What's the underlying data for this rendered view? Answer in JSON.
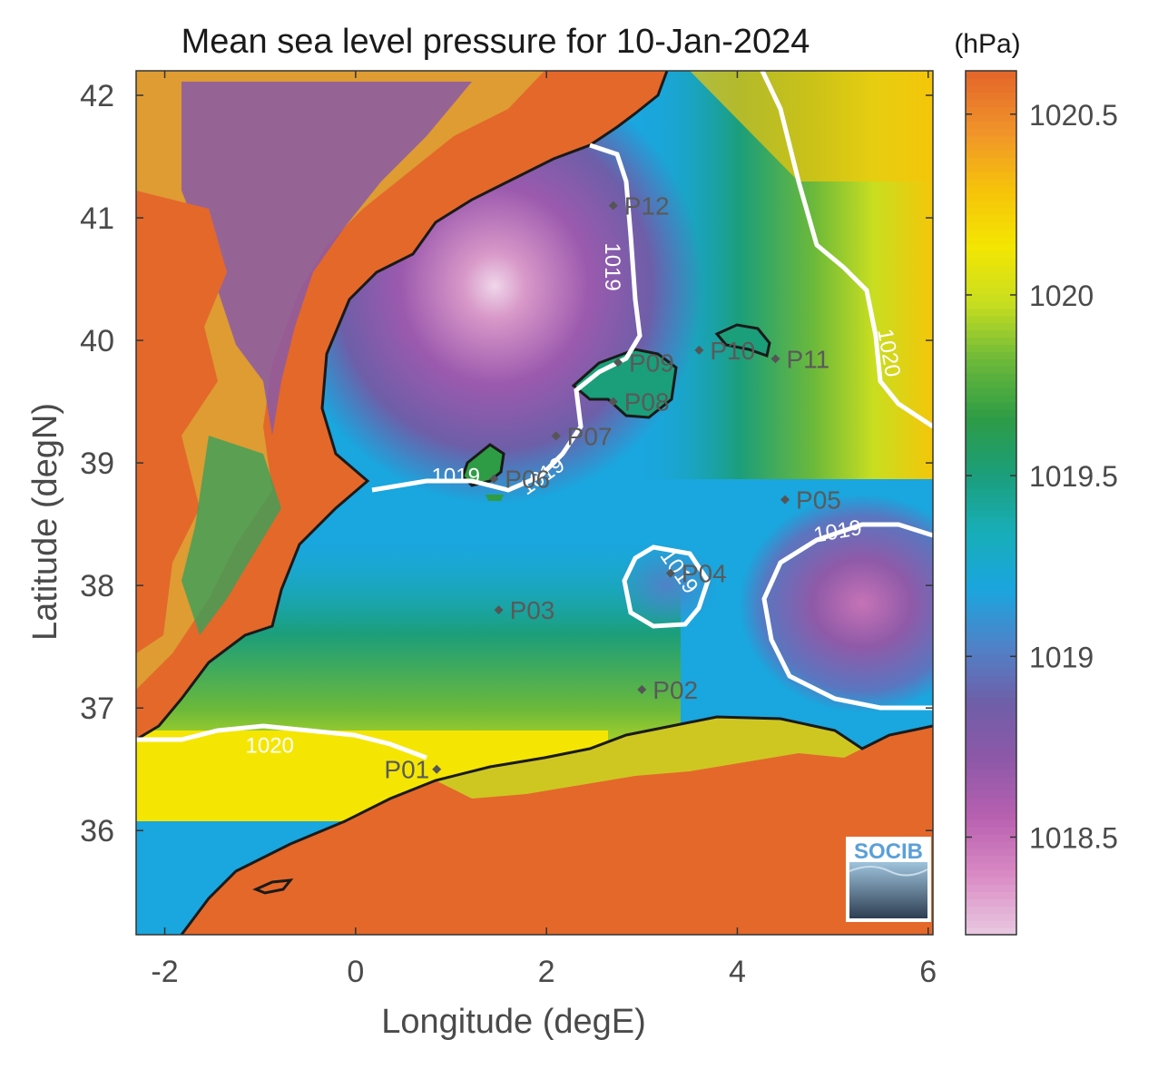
{
  "chart_data": {
    "type": "heatmap",
    "title": "Mean sea level pressure for 10-Jan-2024",
    "xlabel": "Longitude (degE)",
    "ylabel": "Latitude (degN)",
    "xlim": [
      -2.3,
      6.05
    ],
    "ylim": [
      35.15,
      42.2
    ],
    "xticks": [
      -2,
      0,
      2,
      4,
      6
    ],
    "xtick_labels": [
      "-2",
      "0",
      "2",
      "4",
      "6"
    ],
    "yticks": [
      36,
      37,
      38,
      39,
      40,
      41,
      42
    ],
    "ytick_labels": [
      "36",
      "37",
      "38",
      "39",
      "40",
      "41",
      "42"
    ],
    "colorbar": {
      "unit": "(hPa)",
      "range": [
        1018.23,
        1020.62
      ],
      "ticks": [
        1018.5,
        1019,
        1019.5,
        1020,
        1020.5
      ],
      "tick_labels": [
        "1018.5",
        "1019",
        "1019.5",
        "1020",
        "1020.5"
      ],
      "colors": [
        "#e8c6e0",
        "#d98ac4",
        "#b860b0",
        "#8e58a8",
        "#6f5ea8",
        "#4f82c8",
        "#1aa6de",
        "#18aeb8",
        "#1b9e7a",
        "#2e9c45",
        "#6cb93a",
        "#c8de20",
        "#f4e602",
        "#f6c20a",
        "#f0942a",
        "#e4682a"
      ]
    },
    "contours": [
      {
        "label": "1019",
        "level": 1019
      },
      {
        "label": "1020",
        "level": 1020
      }
    ],
    "stations": [
      {
        "name": "P01",
        "lon": 0.85,
        "lat": 36.5
      },
      {
        "name": "P02",
        "lon": 3.0,
        "lat": 37.15
      },
      {
        "name": "P03",
        "lon": 1.5,
        "lat": 37.8
      },
      {
        "name": "P04",
        "lon": 3.3,
        "lat": 38.1
      },
      {
        "name": "P05",
        "lon": 4.5,
        "lat": 38.7
      },
      {
        "name": "P06",
        "lon": 1.45,
        "lat": 38.87
      },
      {
        "name": "P07",
        "lon": 2.1,
        "lat": 39.22
      },
      {
        "name": "P08",
        "lon": 2.7,
        "lat": 39.5
      },
      {
        "name": "P09",
        "lon": 2.75,
        "lat": 39.82
      },
      {
        "name": "P10",
        "lon": 3.6,
        "lat": 39.92
      },
      {
        "name": "P11",
        "lon": 4.4,
        "lat": 39.85
      },
      {
        "name": "P12",
        "lon": 2.7,
        "lat": 41.1
      }
    ],
    "pressure_centers": [
      {
        "lon": 1.6,
        "lat": 40.45,
        "value": 1018.25
      },
      {
        "lon": 5.45,
        "lat": 37.8,
        "value": 1018.6
      }
    ],
    "logo_text": "SOCIB"
  }
}
